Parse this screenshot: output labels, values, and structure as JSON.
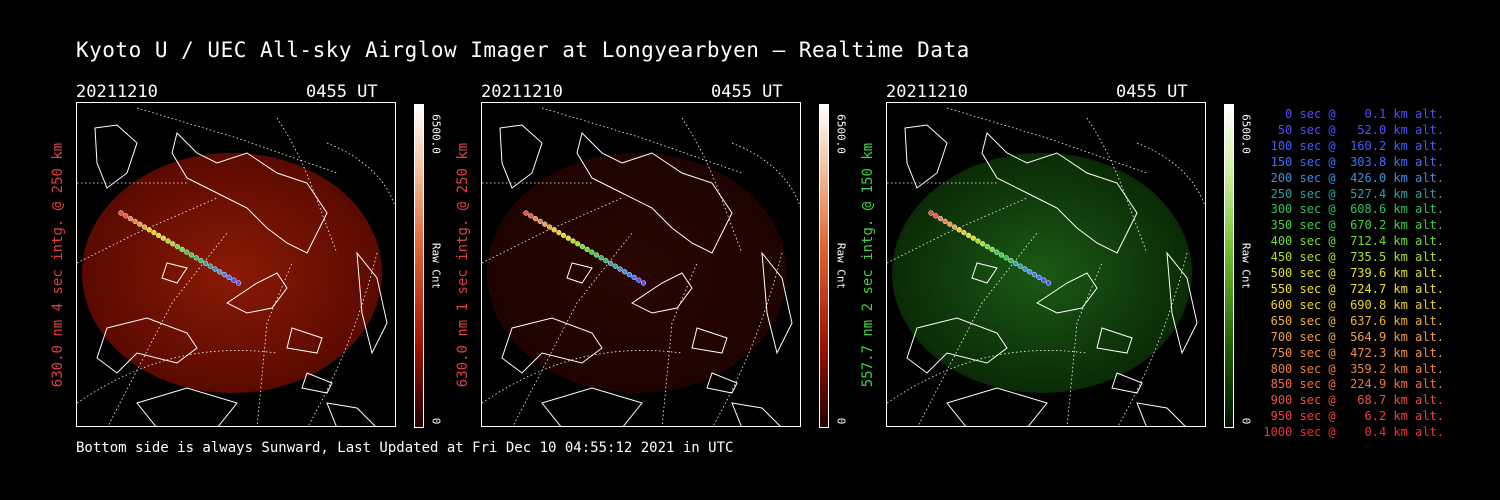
{
  "title": "Kyoto U / UEC All-sky Airglow Imager at Longyearbyen — Realtime Data",
  "footer": "Bottom side is always Sunward, Last Updated at Fri Dec 10 04:55:12 2021 in UTC",
  "panels": [
    {
      "date": "20211210",
      "time": "0455 UT",
      "side_label": "630.0 nm 4 sec intg. @ 250 km",
      "side_color": "#e04040",
      "cbar_max": "6500.0",
      "cbar_label": "Raw Cnt",
      "cbar_min": "0",
      "tint": "red"
    },
    {
      "date": "20211210",
      "time": "0455 UT",
      "side_label": "630.0 nm 1 sec intg. @ 250 km",
      "side_color": "#e04040",
      "cbar_max": "6500.0",
      "cbar_label": "Raw Cnt",
      "cbar_min": "0",
      "tint": "darkred"
    },
    {
      "date": "20211210",
      "time": "0455 UT",
      "side_label": "557.7 nm 2 sec intg. @ 150 km",
      "side_color": "#40d040",
      "cbar_max": "6500.0",
      "cbar_label": "Raw Cnt",
      "cbar_min": "0",
      "tint": "green"
    }
  ],
  "legend": [
    {
      "text": "   0 sec @    0.1 km alt.",
      "color": "#5050ff"
    },
    {
      "text": "  50 sec @   52.0 km alt.",
      "color": "#5050ff"
    },
    {
      "text": " 100 sec @  160.2 km alt.",
      "color": "#4060ff"
    },
    {
      "text": " 150 sec @  303.8 km alt.",
      "color": "#4070ff"
    },
    {
      "text": " 200 sec @  426.0 km alt.",
      "color": "#4090e0"
    },
    {
      "text": " 250 sec @  527.4 km alt.",
      "color": "#30a0a0"
    },
    {
      "text": " 300 sec @  608.6 km alt.",
      "color": "#30c060"
    },
    {
      "text": " 350 sec @  670.2 km alt.",
      "color": "#40d040"
    },
    {
      "text": " 400 sec @  712.4 km alt.",
      "color": "#70e030"
    },
    {
      "text": " 450 sec @  735.5 km alt.",
      "color": "#b0e020"
    },
    {
      "text": " 500 sec @  739.6 km alt.",
      "color": "#e0e020"
    },
    {
      "text": " 550 sec @  724.7 km alt.",
      "color": "#f0e020"
    },
    {
      "text": " 600 sec @  690.8 km alt.",
      "color": "#f0d020"
    },
    {
      "text": " 650 sec @  637.6 km alt.",
      "color": "#f0b030"
    },
    {
      "text": " 700 sec @  564.9 km alt.",
      "color": "#f0a040"
    },
    {
      "text": " 750 sec @  472.3 km alt.",
      "color": "#f09040"
    },
    {
      "text": " 800 sec @  359.2 km alt.",
      "color": "#f08040"
    },
    {
      "text": " 850 sec @  224.9 km alt.",
      "color": "#f07040"
    },
    {
      "text": " 900 sec @   68.7 km alt.",
      "color": "#f05040"
    },
    {
      "text": " 950 sec @    6.2 km alt.",
      "color": "#f04040"
    },
    {
      "text": "1000 sec @    0.4 km alt.",
      "color": "#f03030"
    }
  ]
}
